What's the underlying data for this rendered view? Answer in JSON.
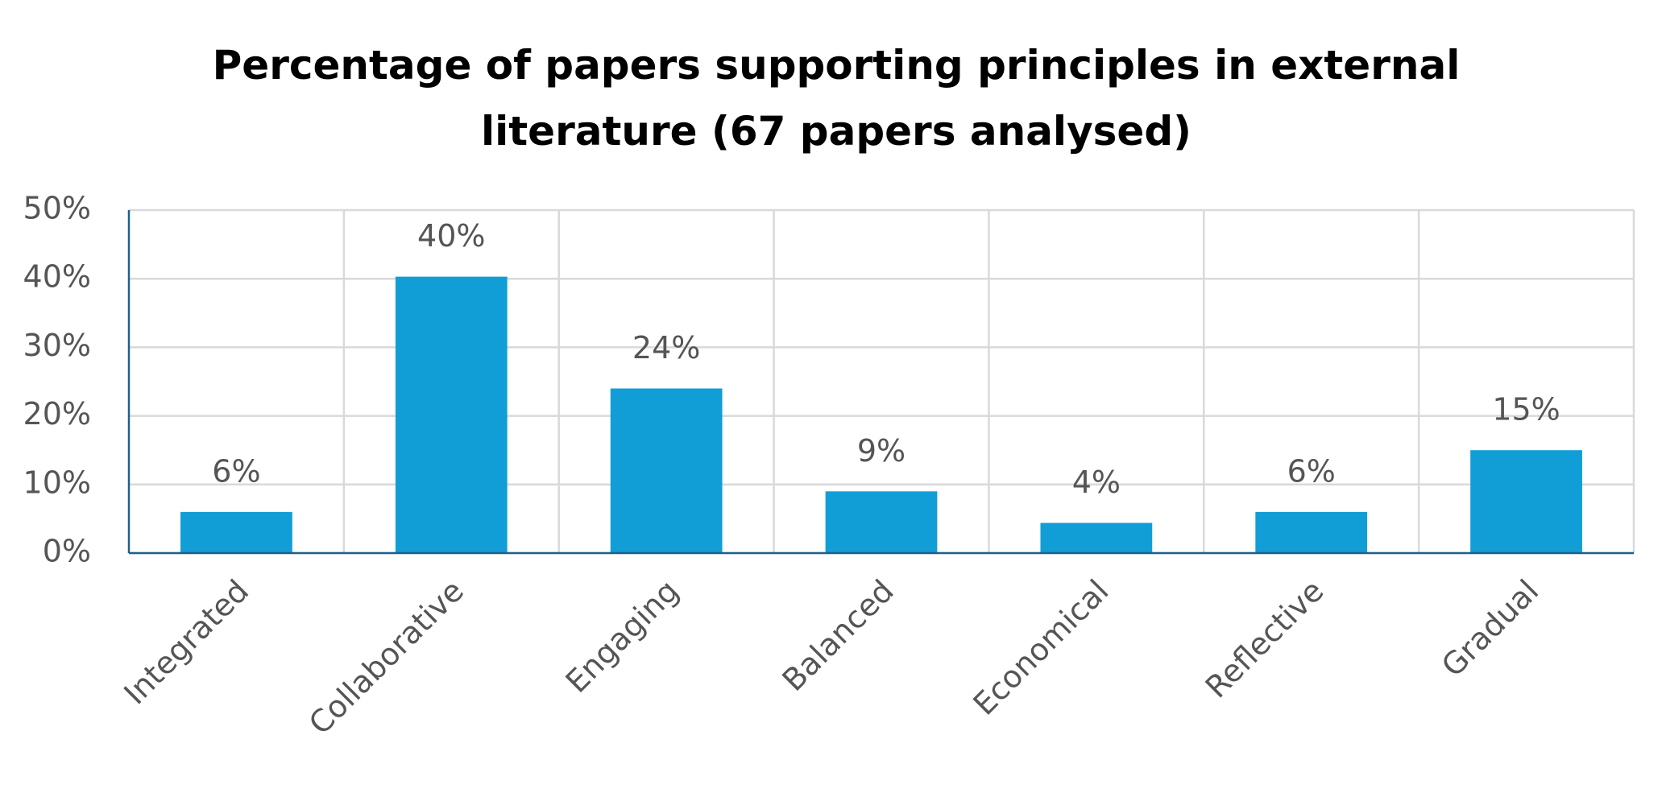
{
  "chart_data": {
    "type": "bar",
    "title": "Percentage of papers supporting principles in external literature (67 papers analysed)",
    "categories": [
      "Integrated",
      "Collaborative",
      "Engaging",
      "Balanced",
      "Economical",
      "Reflective",
      "Gradual"
    ],
    "values": [
      6,
      40.3,
      24,
      9,
      4.4,
      6,
      15
    ],
    "value_labels": [
      "6%",
      "40%",
      "24%",
      "9%",
      "4%",
      "6%",
      "15%"
    ],
    "color": "#119ed6",
    "ylim": [
      0,
      50
    ],
    "yticks": [
      {
        "value": 0,
        "label": "0%"
      },
      {
        "value": 10,
        "label": "10%"
      },
      {
        "value": 20,
        "label": "20%"
      },
      {
        "value": 30,
        "label": "30%"
      },
      {
        "value": 40,
        "label": "40%"
      },
      {
        "value": 50,
        "label": "50%"
      }
    ],
    "grid": true
  }
}
